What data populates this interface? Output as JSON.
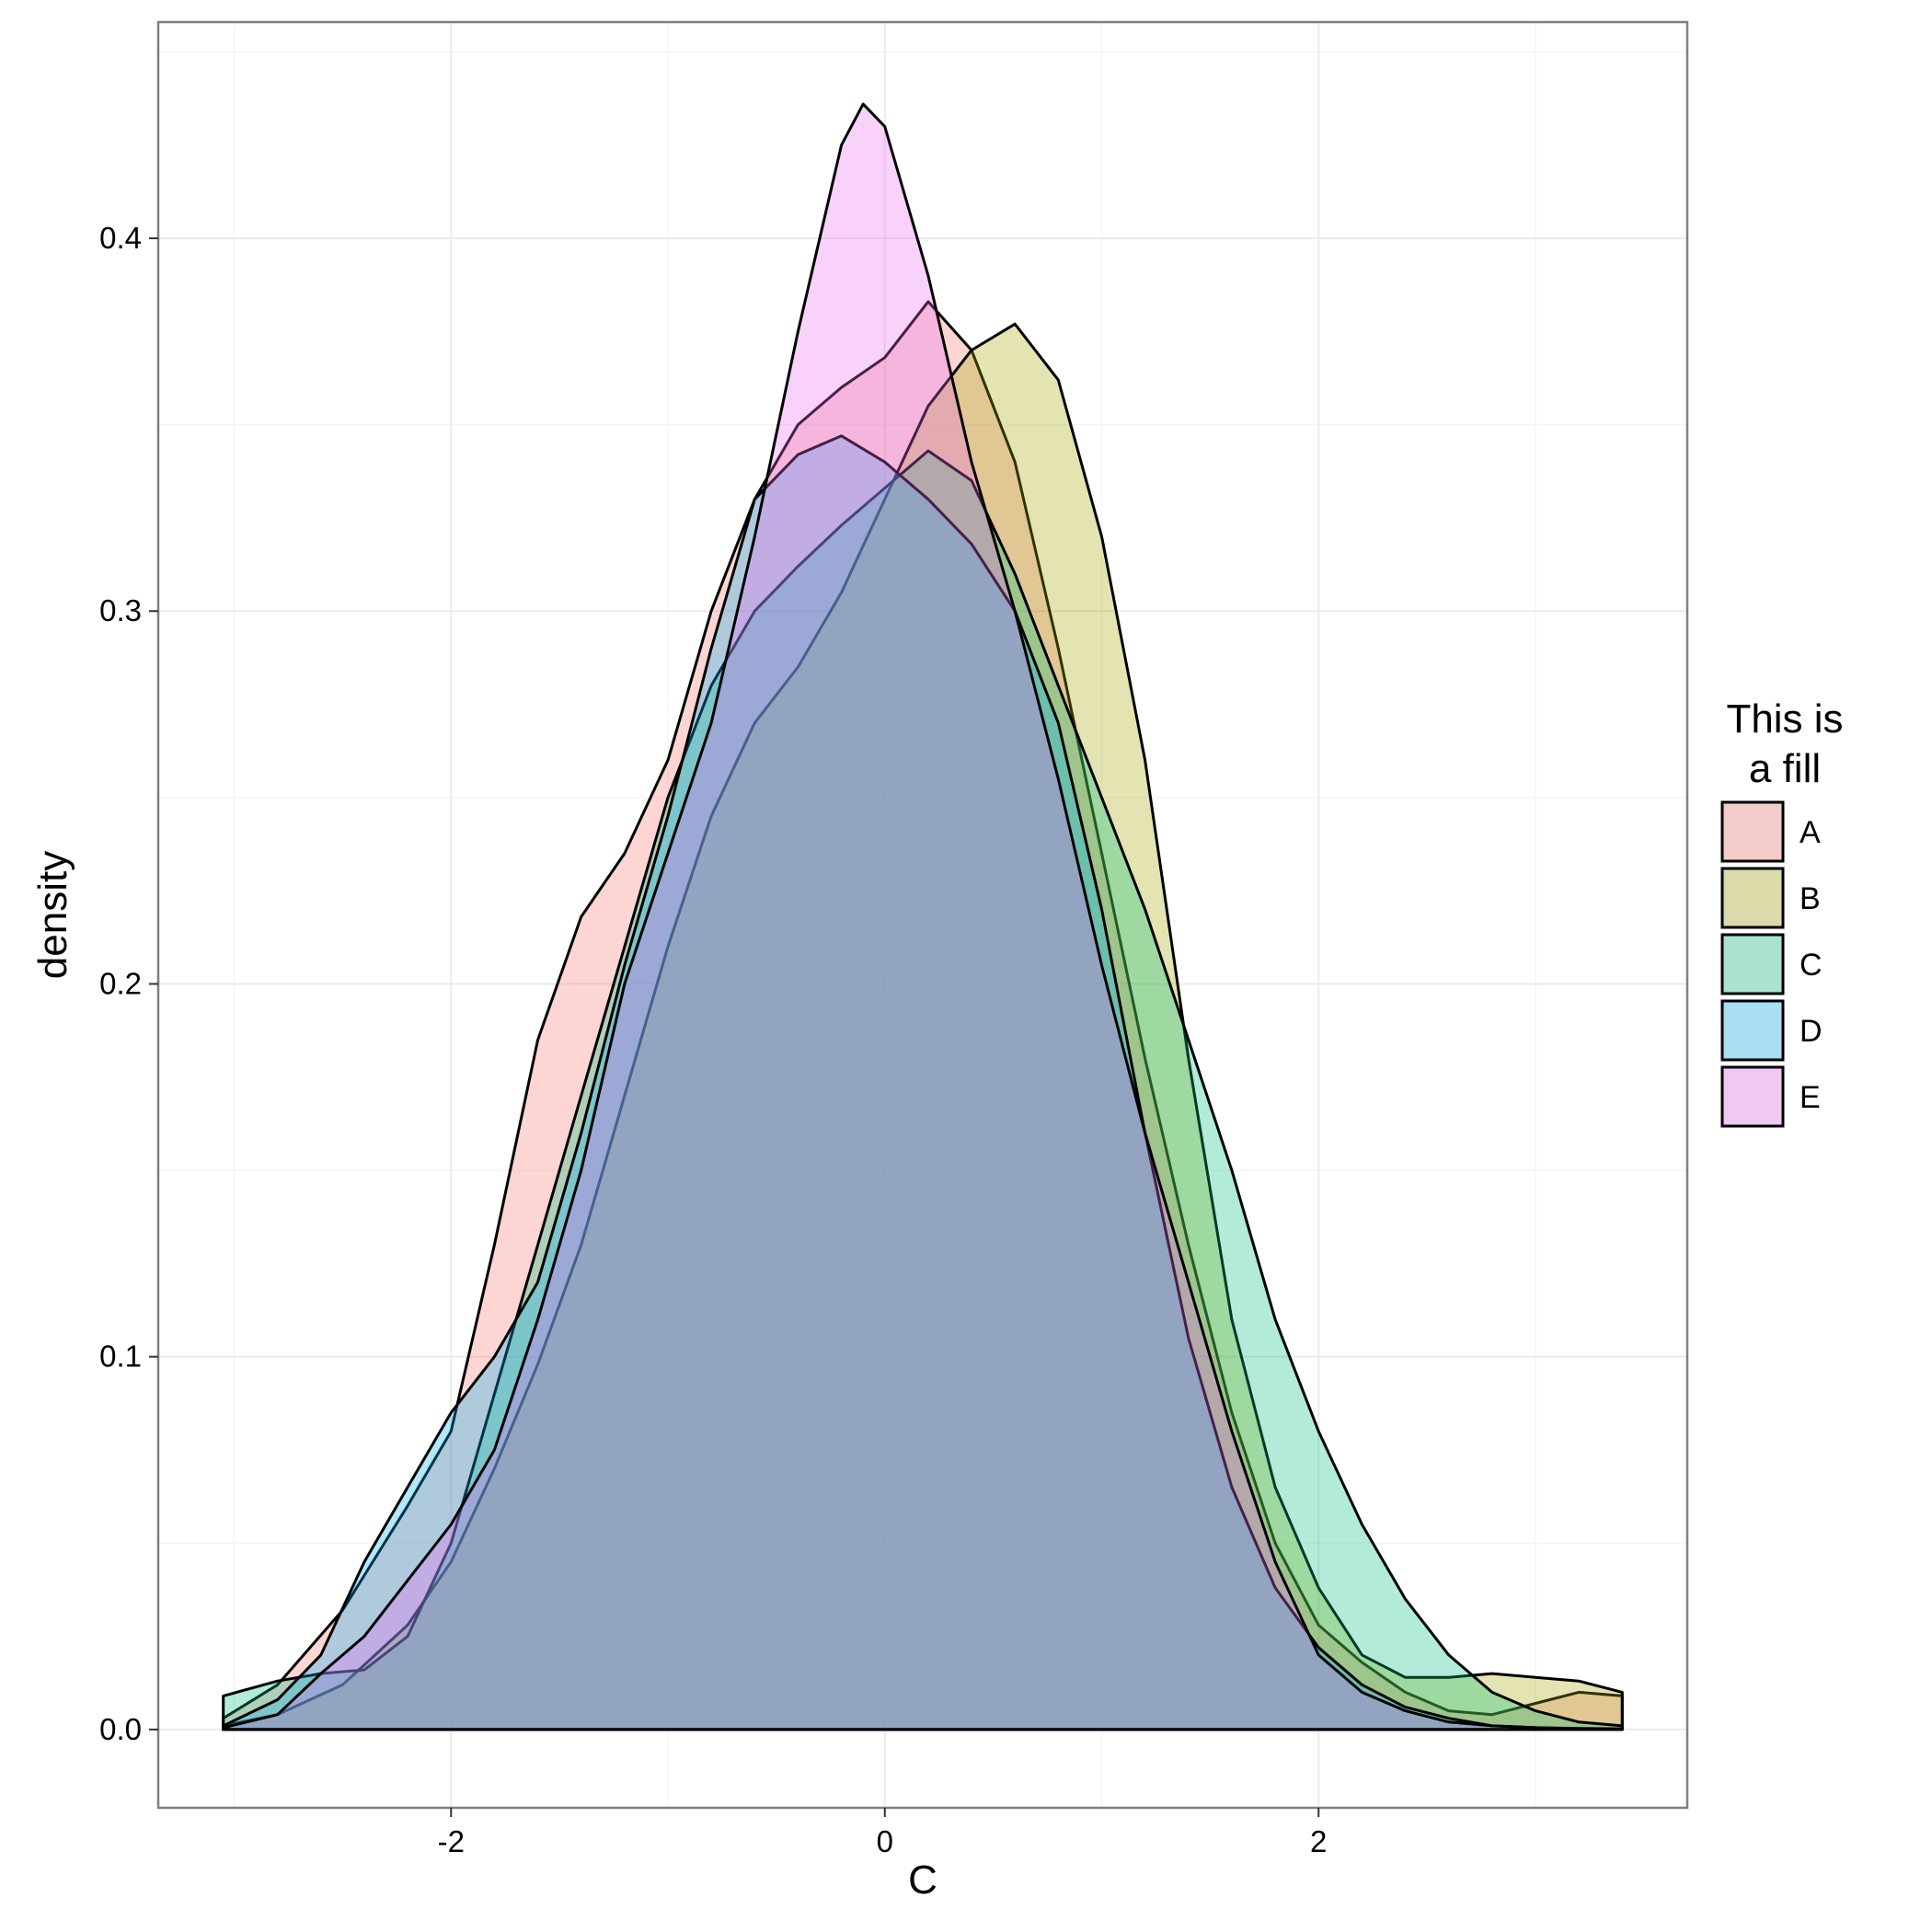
{
  "chart_data": {
    "type": "area",
    "subtype": "density",
    "xlabel": "C",
    "ylabel": "density",
    "xlim": [
      -3.35,
      3.7
    ],
    "ylim": [
      -0.021,
      0.458
    ],
    "x_ticks": [
      "-2",
      "0",
      "2"
    ],
    "y_ticks": [
      "0.0",
      "0.1",
      "0.2",
      "0.3",
      "0.4"
    ],
    "grid": true,
    "legend": {
      "title": [
        "This is",
        "a fill"
      ],
      "position": "right"
    },
    "fill_opacity": 0.3,
    "series": [
      {
        "name": "A",
        "color": "#F8766D",
        "points": [
          [
            -3.05,
            0.003
          ],
          [
            -2.8,
            0.012
          ],
          [
            -2.5,
            0.032
          ],
          [
            -2.2,
            0.06
          ],
          [
            -2.0,
            0.08
          ],
          [
            -1.8,
            0.13
          ],
          [
            -1.6,
            0.185
          ],
          [
            -1.4,
            0.218
          ],
          [
            -1.2,
            0.235
          ],
          [
            -1.0,
            0.26
          ],
          [
            -0.8,
            0.3
          ],
          [
            -0.6,
            0.33
          ],
          [
            -0.4,
            0.35
          ],
          [
            -0.2,
            0.36
          ],
          [
            0.0,
            0.368
          ],
          [
            0.2,
            0.383
          ],
          [
            0.4,
            0.37
          ],
          [
            0.6,
            0.34
          ],
          [
            0.8,
            0.29
          ],
          [
            1.0,
            0.235
          ],
          [
            1.2,
            0.18
          ],
          [
            1.4,
            0.13
          ],
          [
            1.6,
            0.085
          ],
          [
            1.8,
            0.05
          ],
          [
            2.0,
            0.028
          ],
          [
            2.2,
            0.018
          ],
          [
            2.4,
            0.01
          ],
          [
            2.6,
            0.005
          ],
          [
            2.8,
            0.004
          ],
          [
            3.0,
            0.007
          ],
          [
            3.2,
            0.01
          ],
          [
            3.4,
            0.009
          ]
        ]
      },
      {
        "name": "B",
        "color": "#A3A500",
        "points": [
          [
            -3.05,
            0.001
          ],
          [
            -2.8,
            0.004
          ],
          [
            -2.5,
            0.012
          ],
          [
            -2.2,
            0.028
          ],
          [
            -2.0,
            0.045
          ],
          [
            -1.8,
            0.07
          ],
          [
            -1.6,
            0.098
          ],
          [
            -1.4,
            0.13
          ],
          [
            -1.2,
            0.17
          ],
          [
            -1.0,
            0.21
          ],
          [
            -0.8,
            0.245
          ],
          [
            -0.6,
            0.27
          ],
          [
            -0.4,
            0.285
          ],
          [
            -0.2,
            0.305
          ],
          [
            0.0,
            0.33
          ],
          [
            0.2,
            0.355
          ],
          [
            0.4,
            0.37
          ],
          [
            0.6,
            0.377
          ],
          [
            0.8,
            0.362
          ],
          [
            1.0,
            0.32
          ],
          [
            1.2,
            0.26
          ],
          [
            1.4,
            0.18
          ],
          [
            1.6,
            0.11
          ],
          [
            1.8,
            0.065
          ],
          [
            2.0,
            0.038
          ],
          [
            2.2,
            0.02
          ],
          [
            2.4,
            0.014
          ],
          [
            2.6,
            0.014
          ],
          [
            2.8,
            0.015
          ],
          [
            3.0,
            0.014
          ],
          [
            3.2,
            0.013
          ],
          [
            3.4,
            0.01
          ]
        ]
      },
      {
        "name": "C",
        "color": "#00BF7D",
        "points": [
          [
            -3.05,
            0.009
          ],
          [
            -2.8,
            0.013
          ],
          [
            -2.6,
            0.015
          ],
          [
            -2.4,
            0.016
          ],
          [
            -2.2,
            0.025
          ],
          [
            -2.0,
            0.05
          ],
          [
            -1.8,
            0.09
          ],
          [
            -1.6,
            0.13
          ],
          [
            -1.4,
            0.17
          ],
          [
            -1.2,
            0.21
          ],
          [
            -1.0,
            0.25
          ],
          [
            -0.8,
            0.28
          ],
          [
            -0.6,
            0.3
          ],
          [
            -0.4,
            0.312
          ],
          [
            -0.2,
            0.323
          ],
          [
            0.0,
            0.333
          ],
          [
            0.2,
            0.343
          ],
          [
            0.4,
            0.335
          ],
          [
            0.6,
            0.31
          ],
          [
            0.8,
            0.28
          ],
          [
            1.0,
            0.25
          ],
          [
            1.2,
            0.22
          ],
          [
            1.4,
            0.185
          ],
          [
            1.6,
            0.15
          ],
          [
            1.8,
            0.11
          ],
          [
            2.0,
            0.08
          ],
          [
            2.2,
            0.055
          ],
          [
            2.4,
            0.035
          ],
          [
            2.6,
            0.02
          ],
          [
            2.8,
            0.01
          ],
          [
            3.0,
            0.005
          ],
          [
            3.2,
            0.002
          ],
          [
            3.4,
            0.001
          ]
        ]
      },
      {
        "name": "D",
        "color": "#00B0F6",
        "points": [
          [
            -3.05,
            0.001
          ],
          [
            -2.8,
            0.008
          ],
          [
            -2.6,
            0.02
          ],
          [
            -2.4,
            0.045
          ],
          [
            -2.2,
            0.065
          ],
          [
            -2.0,
            0.085
          ],
          [
            -1.8,
            0.1
          ],
          [
            -1.6,
            0.12
          ],
          [
            -1.4,
            0.16
          ],
          [
            -1.2,
            0.205
          ],
          [
            -1.0,
            0.245
          ],
          [
            -0.8,
            0.29
          ],
          [
            -0.6,
            0.33
          ],
          [
            -0.4,
            0.342
          ],
          [
            -0.2,
            0.347
          ],
          [
            0.0,
            0.34
          ],
          [
            0.2,
            0.33
          ],
          [
            0.4,
            0.318
          ],
          [
            0.6,
            0.3
          ],
          [
            0.8,
            0.27
          ],
          [
            1.0,
            0.22
          ],
          [
            1.2,
            0.16
          ],
          [
            1.4,
            0.105
          ],
          [
            1.6,
            0.065
          ],
          [
            1.8,
            0.038
          ],
          [
            2.0,
            0.022
          ],
          [
            2.2,
            0.012
          ],
          [
            2.4,
            0.006
          ],
          [
            2.6,
            0.003
          ],
          [
            2.8,
            0.001
          ],
          [
            3.0,
            0.0005
          ],
          [
            3.2,
            0.0003
          ],
          [
            3.4,
            0.0002
          ]
        ]
      },
      {
        "name": "E",
        "color": "#E76BF3",
        "points": [
          [
            -3.05,
            0.0005
          ],
          [
            -2.8,
            0.004
          ],
          [
            -2.6,
            0.015
          ],
          [
            -2.4,
            0.025
          ],
          [
            -2.2,
            0.04
          ],
          [
            -2.0,
            0.055
          ],
          [
            -1.8,
            0.075
          ],
          [
            -1.6,
            0.11
          ],
          [
            -1.4,
            0.15
          ],
          [
            -1.2,
            0.2
          ],
          [
            -1.0,
            0.235
          ],
          [
            -0.8,
            0.27
          ],
          [
            -0.6,
            0.32
          ],
          [
            -0.4,
            0.375
          ],
          [
            -0.2,
            0.425
          ],
          [
            -0.1,
            0.436
          ],
          [
            0.0,
            0.43
          ],
          [
            0.2,
            0.39
          ],
          [
            0.4,
            0.34
          ],
          [
            0.6,
            0.3
          ],
          [
            0.8,
            0.255
          ],
          [
            1.0,
            0.205
          ],
          [
            1.2,
            0.16
          ],
          [
            1.4,
            0.12
          ],
          [
            1.6,
            0.08
          ],
          [
            1.8,
            0.045
          ],
          [
            2.0,
            0.02
          ],
          [
            2.2,
            0.01
          ],
          [
            2.4,
            0.005
          ],
          [
            2.6,
            0.002
          ],
          [
            2.8,
            0.001
          ],
          [
            3.0,
            0.0005
          ],
          [
            3.2,
            0.0002
          ],
          [
            3.4,
            0.0001
          ]
        ]
      }
    ]
  }
}
